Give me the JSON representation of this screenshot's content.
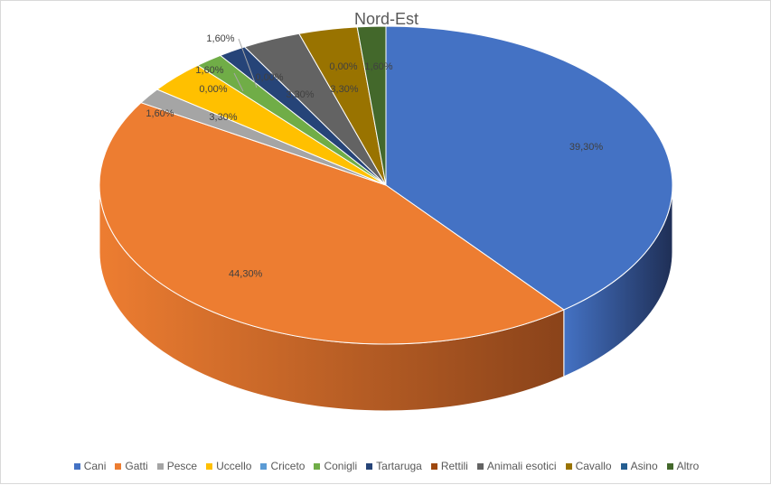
{
  "chart_data": {
    "type": "pie",
    "title": "Nord-Est",
    "legend_position": "bottom",
    "slices": [
      {
        "label": "Cani",
        "value": 39.3,
        "display": "39,30%",
        "color": "#4472C4",
        "side": "#1F2F56"
      },
      {
        "label": "Gatti",
        "value": 44.3,
        "display": "44,30%",
        "color": "#ED7D31",
        "side": "#8A431A"
      },
      {
        "label": "Pesce",
        "value": 1.6,
        "display": "1,60%",
        "color": "#A5A5A5",
        "side": "#5E5E5E"
      },
      {
        "label": "Uccello",
        "value": 3.3,
        "display": "3,30%",
        "color": "#FFC000",
        "side": "#8F6B00"
      },
      {
        "label": "Criceto",
        "value": 0.0,
        "display": "0,00%",
        "color": "#5B9BD5",
        "side": "#2E4E6B"
      },
      {
        "label": "Conigli",
        "value": 1.6,
        "display": "1,60%",
        "color": "#70AD47",
        "side": "#3B5C25"
      },
      {
        "label": "Tartaruga",
        "value": 1.6,
        "display": "1,60%",
        "color": "#264478",
        "side": "#142440"
      },
      {
        "label": "Rettili",
        "value": 0.0,
        "display": "0,00%",
        "color": "#9E480E",
        "side": "#572707"
      },
      {
        "label": "Animali esotici",
        "value": 3.3,
        "display": "3,30%",
        "color": "#636363",
        "side": "#353535"
      },
      {
        "label": "Cavallo",
        "value": 3.3,
        "display": "3,30%",
        "color": "#997300",
        "side": "#524000"
      },
      {
        "label": "Asino",
        "value": 0.0,
        "display": "0,00%",
        "color": "#255E91",
        "side": "#12304A"
      },
      {
        "label": "Altro",
        "value": 1.6,
        "display": "1,60%",
        "color": "#43682B",
        "side": "#223516"
      }
    ]
  }
}
